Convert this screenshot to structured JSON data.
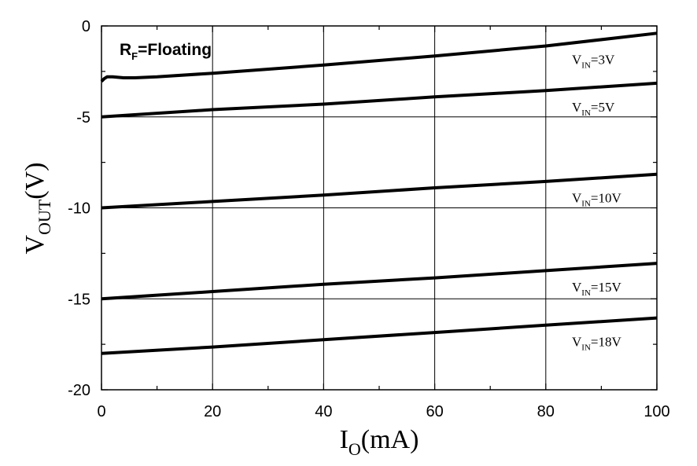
{
  "chart_data": {
    "type": "line",
    "annotation": {
      "main": "R",
      "sub": "F",
      "rest": "=Floating"
    },
    "xlabel": {
      "main": "I",
      "sub": "O",
      "rest": "(mA)"
    },
    "ylabel": {
      "main": "V",
      "sub": "OUT",
      "rest": "(V)"
    },
    "xlim": [
      0,
      100
    ],
    "ylim": [
      -20,
      0
    ],
    "xticks": [
      0,
      20,
      40,
      60,
      80,
      100
    ],
    "yticks": [
      0,
      -5,
      -10,
      -15,
      -20
    ],
    "grid": true,
    "series": [
      {
        "name": "V_IN=3V",
        "label": {
          "main": "V",
          "sub": "IN",
          "rest": "=3V"
        },
        "x": [
          0,
          0.5,
          1,
          2,
          4,
          6,
          10,
          20,
          40,
          60,
          80,
          100
        ],
        "y": [
          -3.05,
          -2.9,
          -2.8,
          -2.8,
          -2.85,
          -2.85,
          -2.8,
          -2.6,
          -2.15,
          -1.65,
          -1.1,
          -0.4
        ]
      },
      {
        "name": "V_IN=5V",
        "label": {
          "main": "V",
          "sub": "IN",
          "rest": "=5V"
        },
        "x": [
          0,
          20,
          40,
          60,
          80,
          100
        ],
        "y": [
          -5.0,
          -4.6,
          -4.3,
          -3.9,
          -3.55,
          -3.15
        ]
      },
      {
        "name": "V_IN=10V",
        "label": {
          "main": "V",
          "sub": "IN",
          "rest": "=10V"
        },
        "x": [
          0,
          20,
          40,
          60,
          80,
          100
        ],
        "y": [
          -10.0,
          -9.65,
          -9.3,
          -8.9,
          -8.55,
          -8.15
        ]
      },
      {
        "name": "V_IN=15V",
        "label": {
          "main": "V",
          "sub": "IN",
          "rest": "=15V"
        },
        "x": [
          0,
          20,
          40,
          60,
          80,
          100
        ],
        "y": [
          -15.0,
          -14.6,
          -14.2,
          -13.85,
          -13.45,
          -13.05
        ]
      },
      {
        "name": "V_IN=18V",
        "label": {
          "main": "V",
          "sub": "IN",
          "rest": "=18V"
        },
        "x": [
          0,
          20,
          40,
          60,
          80,
          100
        ],
        "y": [
          -18.0,
          -17.65,
          -17.25,
          -16.85,
          -16.45,
          -16.05
        ]
      }
    ]
  }
}
